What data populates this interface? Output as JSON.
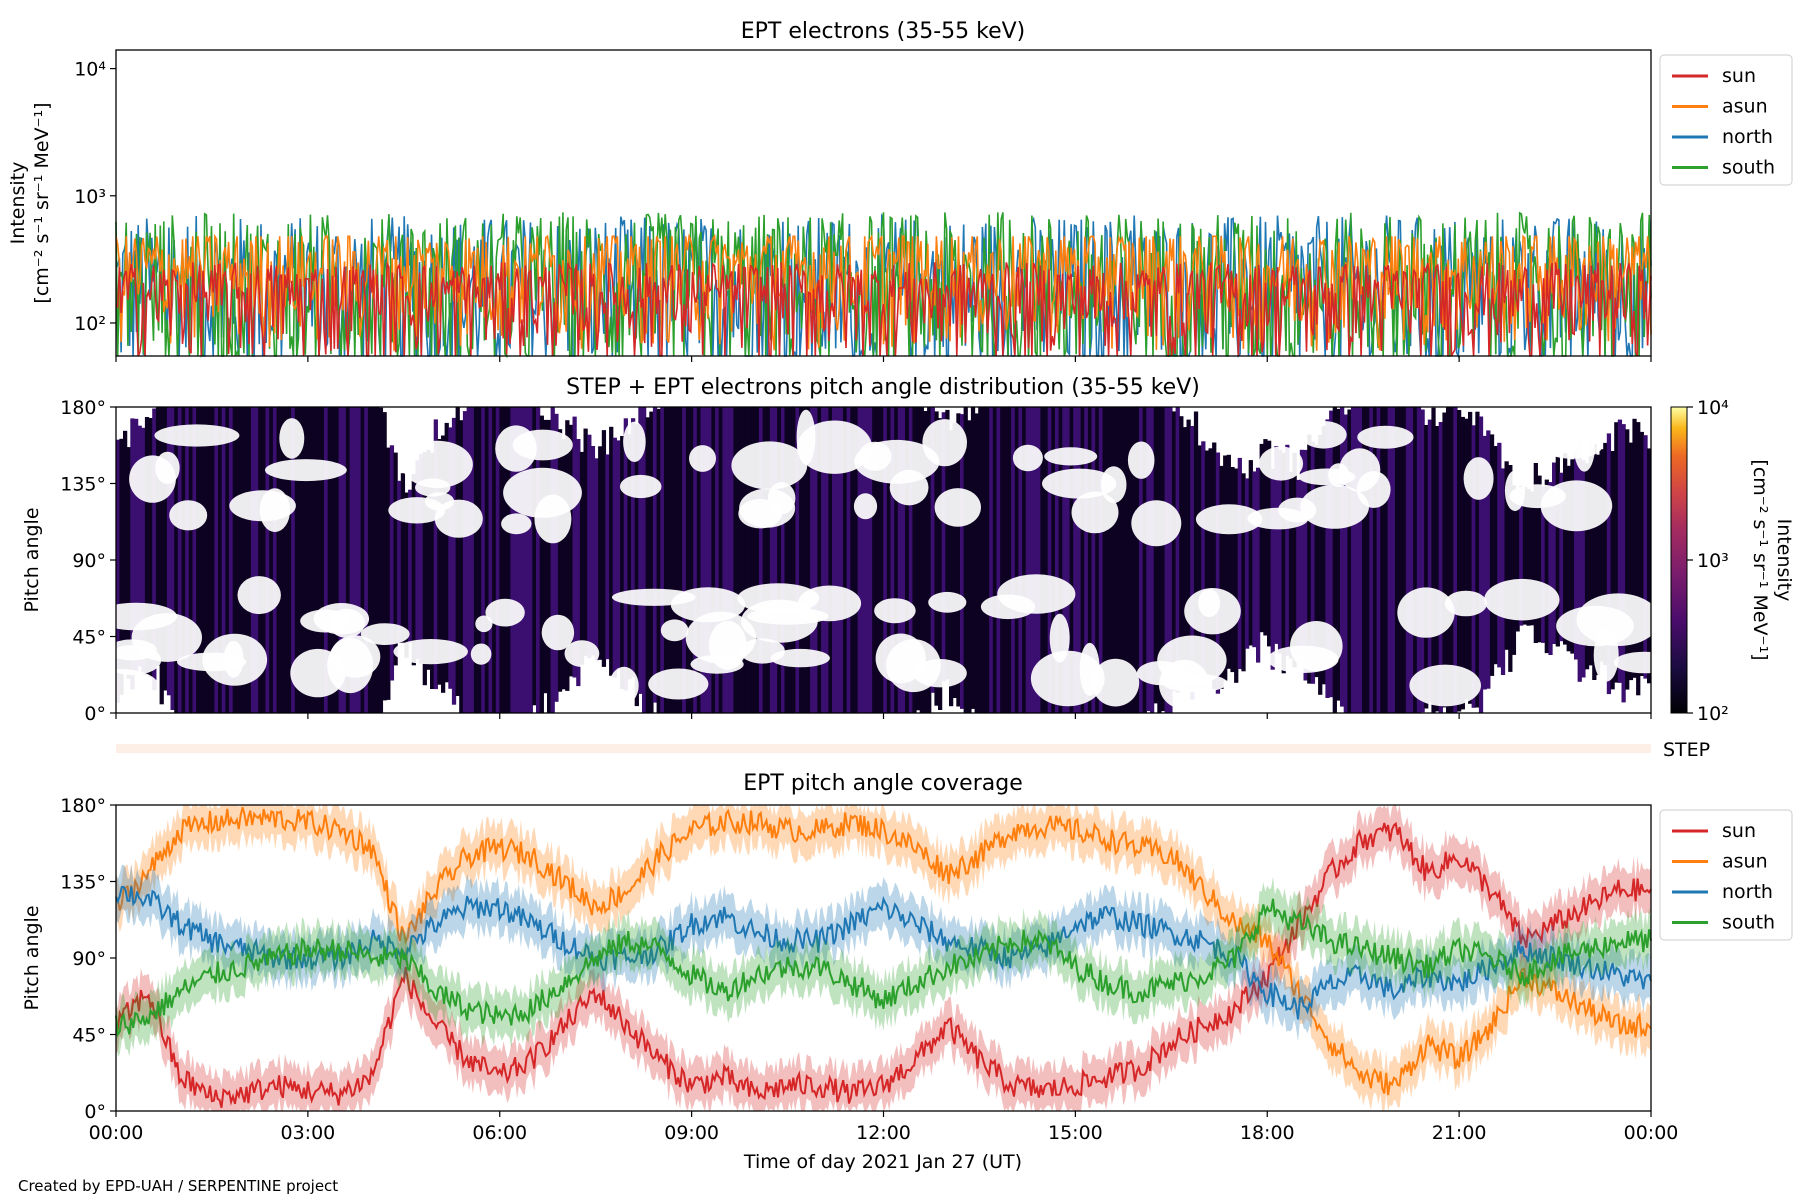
{
  "credit": "Created by EPD-UAH / SERPENTINE project",
  "colors": {
    "sun": "#d62728",
    "asun": "#ff7f0e",
    "north": "#1f77b4",
    "south": "#2ca02c",
    "step_band": "#fdeee6",
    "pad_dark": "#0d0221",
    "pad_mid": "#3b0f70"
  },
  "chart_data": [
    {
      "type": "line",
      "title": "EPT electrons (35-55 keV)",
      "ylabel_line1": "Intensity",
      "ylabel_line2": "[cm⁻² s⁻¹ sr⁻¹ MeV⁻¹]",
      "yscale": "log",
      "ylim": [
        55,
        14000
      ],
      "yticks": [
        {
          "value": 100,
          "label": "10²"
        },
        {
          "value": 1000,
          "label": "10³"
        },
        {
          "value": 10000,
          "label": "10⁴"
        }
      ],
      "xlim_hours": [
        0,
        24
      ],
      "legend": "outside-top-right",
      "series": [
        {
          "name": "sun",
          "typical": 100,
          "max": 300
        },
        {
          "name": "asun",
          "typical": 260,
          "max": 480
        },
        {
          "name": "north",
          "typical": 150,
          "max": 700
        },
        {
          "name": "south",
          "typical": 150,
          "max": 740
        }
      ]
    },
    {
      "type": "heatmap",
      "title": "STEP + EPT electrons pitch angle distribution (35-55 keV)",
      "ylabel": "Pitch angle",
      "ylim": [
        0,
        180
      ],
      "yticks": [
        {
          "value": 0,
          "label": "0°"
        },
        {
          "value": 45,
          "label": "45°"
        },
        {
          "value": 90,
          "label": "90°"
        },
        {
          "value": 135,
          "label": "135°"
        },
        {
          "value": 180,
          "label": "180°"
        }
      ],
      "colorbar": {
        "label_line1": "Intensity",
        "label_line2": "[cm⁻² s⁻¹ sr⁻¹ MeV⁻¹]",
        "scale": "log",
        "range": [
          100,
          10000
        ],
        "ticks": [
          {
            "value": 100,
            "label": "10²"
          },
          {
            "value": 1000,
            "label": "10³"
          },
          {
            "value": 10000,
            "label": "10⁴"
          }
        ],
        "colormap": "inferno"
      }
    },
    {
      "type": "band",
      "label": "STEP"
    },
    {
      "type": "line",
      "title": "EPT pitch angle coverage",
      "ylabel": "Pitch angle",
      "xlabel": "Time of day 2021 Jan 27 (UT)",
      "ylim": [
        0,
        180
      ],
      "yticks": [
        {
          "value": 0,
          "label": "0°"
        },
        {
          "value": 45,
          "label": "45°"
        },
        {
          "value": 90,
          "label": "90°"
        },
        {
          "value": 135,
          "label": "135°"
        },
        {
          "value": 180,
          "label": "180°"
        }
      ],
      "xticks": [
        {
          "value": 0,
          "label": "00:00"
        },
        {
          "value": 3,
          "label": "03:00"
        },
        {
          "value": 6,
          "label": "06:00"
        },
        {
          "value": 9,
          "label": "09:00"
        },
        {
          "value": 12,
          "label": "12:00"
        },
        {
          "value": 15,
          "label": "15:00"
        },
        {
          "value": 18,
          "label": "18:00"
        },
        {
          "value": 21,
          "label": "21:00"
        },
        {
          "value": 24,
          "label": "00:00"
        }
      ],
      "legend": "outside-top-right",
      "x_hours": [
        0,
        0.5,
        1,
        1.5,
        2,
        2.5,
        3,
        3.5,
        4,
        4.5,
        5,
        5.5,
        6,
        6.5,
        7,
        7.5,
        8,
        8.5,
        9,
        9.5,
        10,
        10.5,
        11,
        11.5,
        12,
        12.5,
        13,
        13.5,
        14,
        14.5,
        15,
        15.5,
        16,
        16.5,
        17,
        17.5,
        18,
        18.5,
        19,
        19.5,
        20,
        20.5,
        21,
        21.5,
        22,
        22.5,
        23,
        23.5,
        24
      ],
      "series": [
        {
          "name": "sun",
          "values": [
            50,
            70,
            20,
            8,
            10,
            15,
            12,
            10,
            20,
            80,
            50,
            30,
            20,
            30,
            50,
            70,
            50,
            30,
            15,
            20,
            10,
            15,
            15,
            10,
            15,
            30,
            50,
            30,
            15,
            12,
            15,
            20,
            25,
            40,
            50,
            60,
            80,
            110,
            140,
            160,
            165,
            140,
            150,
            130,
            100,
            110,
            120,
            130,
            130
          ]
        },
        {
          "name": "asun",
          "values": [
            120,
            140,
            165,
            170,
            172,
            172,
            170,
            165,
            155,
            100,
            130,
            150,
            155,
            150,
            135,
            120,
            130,
            150,
            165,
            170,
            170,
            165,
            165,
            170,
            165,
            155,
            140,
            150,
            165,
            168,
            165,
            160,
            155,
            150,
            130,
            110,
            100,
            70,
            40,
            20,
            15,
            40,
            30,
            50,
            80,
            70,
            60,
            50,
            50
          ]
        },
        {
          "name": "north",
          "values": [
            130,
            125,
            110,
            100,
            95,
            90,
            90,
            90,
            100,
            95,
            110,
            120,
            120,
            110,
            100,
            90,
            90,
            95,
            110,
            115,
            105,
            100,
            100,
            110,
            120,
            110,
            100,
            95,
            90,
            95,
            110,
            115,
            110,
            105,
            100,
            90,
            70,
            60,
            75,
            80,
            70,
            80,
            75,
            85,
            95,
            90,
            85,
            80,
            75
          ]
        },
        {
          "name": "south",
          "values": [
            50,
            55,
            70,
            80,
            85,
            90,
            95,
            95,
            90,
            90,
            70,
            60,
            55,
            60,
            75,
            90,
            100,
            95,
            80,
            70,
            80,
            85,
            85,
            75,
            65,
            75,
            85,
            90,
            100,
            100,
            85,
            75,
            70,
            75,
            80,
            90,
            120,
            110,
            100,
            95,
            90,
            85,
            95,
            90,
            80,
            90,
            95,
            100,
            100
          ]
        }
      ]
    }
  ]
}
